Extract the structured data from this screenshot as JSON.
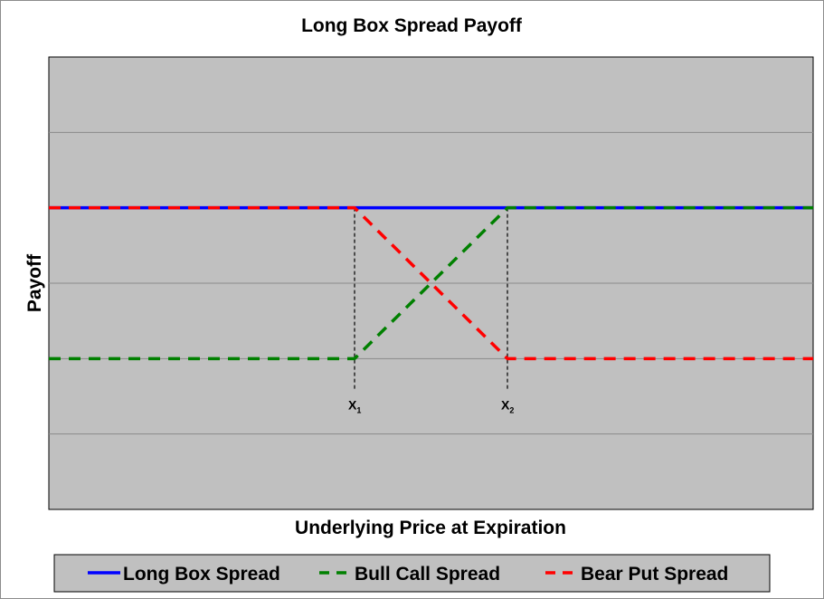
{
  "chart_data": {
    "type": "line",
    "title": "Long Box Spread Payoff",
    "xlabel": "Underlying Price at Expiration",
    "ylabel": "Payoff",
    "x_ticks_shown": false,
    "y_ticks_shown": false,
    "xlim": [
      0,
      100
    ],
    "ylim": [
      0,
      6
    ],
    "grid": {
      "horizontal": true,
      "vertical": false
    },
    "plot_background": "#c0c0c0",
    "legend_position": "bottom",
    "strikes": [
      {
        "name": "X",
        "sub": "1",
        "x": 40
      },
      {
        "name": "X",
        "sub": "2",
        "x": 60
      }
    ],
    "series": [
      {
        "name": "Long Box Spread",
        "color": "#0000ff",
        "dash": "solid",
        "points": [
          [
            0,
            4
          ],
          [
            100,
            4
          ]
        ]
      },
      {
        "name": "Bull Call Spread",
        "color": "#008000",
        "dash": "dashed",
        "points": [
          [
            0,
            2
          ],
          [
            40,
            2
          ],
          [
            60,
            4
          ],
          [
            100,
            4
          ]
        ]
      },
      {
        "name": "Bear Put Spread",
        "color": "#ff0000",
        "dash": "dashed",
        "points": [
          [
            0,
            4
          ],
          [
            40,
            4
          ],
          [
            60,
            2
          ],
          [
            100,
            2
          ]
        ]
      }
    ]
  }
}
